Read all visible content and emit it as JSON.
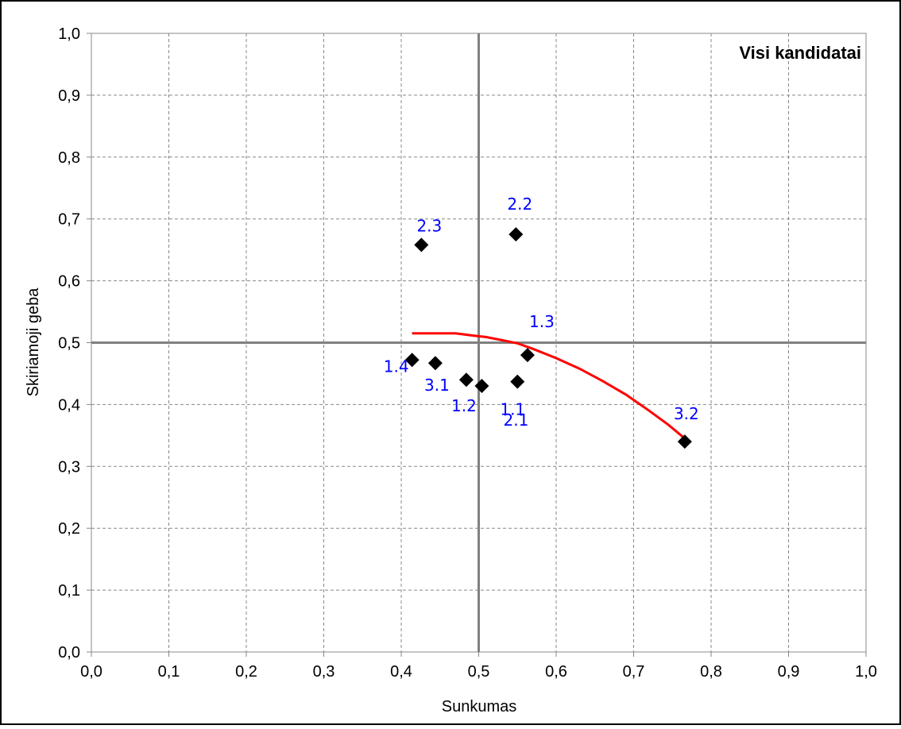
{
  "chart_data": {
    "type": "scatter",
    "title": "Visi kandidatai",
    "xlabel": "Sunkumas",
    "ylabel": "Skiriamoji geba",
    "xlim": [
      0,
      1
    ],
    "ylim": [
      0,
      1
    ],
    "x_ticks": [
      "0,0",
      "0,1",
      "0,2",
      "0,3",
      "0,4",
      "0,5",
      "0,6",
      "0,7",
      "0,8",
      "0,9",
      "1,0"
    ],
    "y_ticks": [
      "0,0",
      "0,1",
      "0,2",
      "0,3",
      "0,4",
      "0,5",
      "0,6",
      "0,7",
      "0,8",
      "0,9",
      "1,0"
    ],
    "grid": true,
    "reference_lines": {
      "x": 0.5,
      "y": 0.5
    },
    "points": [
      {
        "label": "2.3",
        "x": 0.426,
        "y": 0.658
      },
      {
        "label": "2.2",
        "x": 0.548,
        "y": 0.675
      },
      {
        "label": "1.3",
        "x": 0.563,
        "y": 0.48
      },
      {
        "label": "1.4",
        "x": 0.414,
        "y": 0.472
      },
      {
        "label": "3.1",
        "x": 0.444,
        "y": 0.467
      },
      {
        "label": "1.2",
        "x": 0.484,
        "y": 0.44
      },
      {
        "label": "1.1",
        "x": 0.55,
        "y": 0.437
      },
      {
        "label": "2.1",
        "x": 0.504,
        "y": 0.43
      },
      {
        "label": "3.2",
        "x": 0.766,
        "y": 0.34
      }
    ],
    "trend_line": [
      [
        0.414,
        0.515
      ],
      [
        0.47,
        0.515
      ],
      [
        0.49,
        0.512
      ],
      [
        0.51,
        0.509
      ],
      [
        0.53,
        0.504
      ],
      [
        0.55,
        0.499
      ],
      [
        0.57,
        0.49
      ],
      [
        0.6,
        0.475
      ],
      [
        0.63,
        0.458
      ],
      [
        0.66,
        0.438
      ],
      [
        0.69,
        0.416
      ],
      [
        0.72,
        0.39
      ],
      [
        0.745,
        0.367
      ],
      [
        0.766,
        0.345
      ]
    ],
    "colors": {
      "marker": "#000000",
      "point_label": "#0000ff",
      "trend_line": "#ff0000",
      "grid": "#888888",
      "reference_line": "#808080",
      "frame": "#000000"
    }
  }
}
